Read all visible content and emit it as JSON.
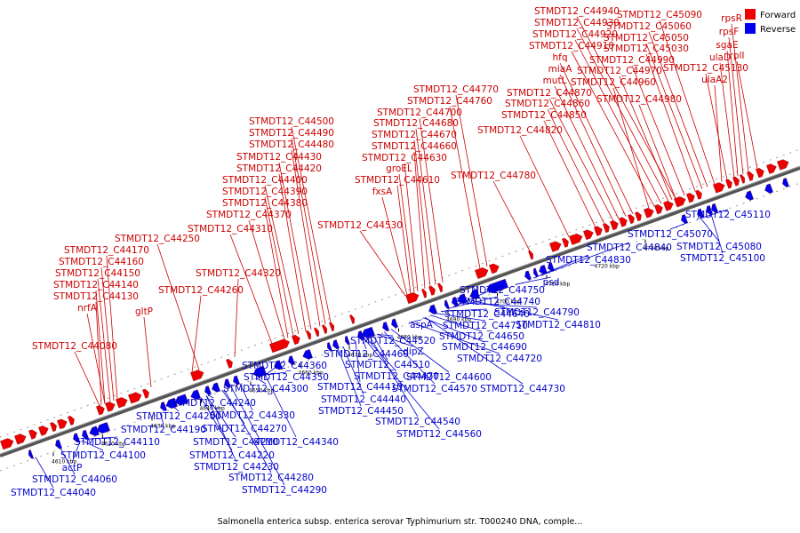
{
  "caption": "Salmonella enterica subsp. enterica serovar Typhimurium str. T000240 DNA, comple...",
  "legend": {
    "forward": {
      "label": "Forward",
      "color": "#ee0000"
    },
    "reverse": {
      "label": "Reverse",
      "color": "#0000ee"
    }
  },
  "ticks": [
    "4610 kbp",
    "4620 kbp",
    "4630 kbp",
    "4640 kbp",
    "4650 kbp",
    "4660 kbp",
    "4670 kbp",
    "4680 kbp",
    "4690 kbp",
    "4700 kbp",
    "4710 kbp",
    "4720 kbp",
    "4730 kbp"
  ],
  "forward_labels": [
    "STMDT12_C44940",
    "STMDT12_C44930",
    "STMDT12_C44920",
    "STMDT12_C44910",
    "hfq",
    "miaA",
    "mutL",
    "STMDT12_C45090",
    "STMDT12_C45060",
    "STMDT12_C45050",
    "STMDT12_C45030",
    "STMDT12_C44990",
    "STMDT12_C44970",
    "STMDT12_C44960",
    "STMDT12_C44870",
    "STMDT12_C44860",
    "STMDT12_C44850",
    "STMDT12_C44820",
    "STMDT12_C44980",
    "rpsR",
    "rpsF",
    "sgaE",
    "ulaD",
    "STMDT12_C45130",
    "rplI",
    "ulaA2",
    "STMDT12_C44770",
    "STMDT12_C44760",
    "STMDT12_C44700",
    "STMDT12_C44680",
    "STMDT12_C44670",
    "STMDT12_C44660",
    "STMDT12_C44630",
    "groEL",
    "STMDT12_C44610",
    "fxsA",
    "STMDT12_C44780",
    "STMDT12_C44500",
    "STMDT12_C44490",
    "STMDT12_C44480",
    "STMDT12_C44430",
    "STMDT12_C44420",
    "STMDT12_C44400",
    "STMDT12_C44390",
    "STMDT12_C44380",
    "STMDT12_C44370",
    "STMDT12_C44310",
    "STMDT12_C44530",
    "STMDT12_C44250",
    "STMDT12_C44170",
    "STMDT12_C44160",
    "STMDT12_C44150",
    "STMDT12_C44140",
    "STMDT12_C44130",
    "nrfA",
    "gltP",
    "STMDT12_C44320",
    "STMDT12_C44260",
    "STMDT12_C44080"
  ],
  "reverse_labels": [
    "STMDT12_C45110",
    "STMDT12_C45070",
    "STMDT12_C45080",
    "STMDT12_C45100",
    "STMDT12_C44840",
    "STMDT12_C44830",
    "psd",
    "STMDT12_C44750",
    "STMDT12_C44740",
    "STMDT12_C44640",
    "STMDT12_C44710",
    "STMDT12_C44790",
    "STMDT12_C44810",
    "STMDT12_C44650",
    "STMDT12_C44690",
    "STMDT12_C44720",
    "STMDT12_C44730",
    "aspA",
    "STMDT12_C44520",
    "STMDT12_C44460",
    "dipZ",
    "STMDT12_C44510",
    "STMDT12_C44470",
    "STMDT12_C44600",
    "STMDT12_C44570",
    "STMDT12_C44410",
    "STMDT12_C44440",
    "STMDT12_C44450",
    "STMDT12_C44540",
    "STMDT12_C44560",
    "STMDT12_C44360",
    "STMDT12_C44350",
    "STMDT12_C44300",
    "STMDT12_C44240",
    "STMDT12_C44330",
    "STMDT12_C44200",
    "STMDT12_C44190",
    "STMDT12_C44270",
    "STMDT12_C44210",
    "STMDT12_C44340",
    "STMDT12_C44220",
    "STMDT12_C44230",
    "STMDT12_C44280",
    "STMDT12_C44290",
    "STMDT12_C44110",
    "STMDT12_C44100",
    "actP",
    "STMDT12_C44060",
    "STMDT12_C44040"
  ]
}
